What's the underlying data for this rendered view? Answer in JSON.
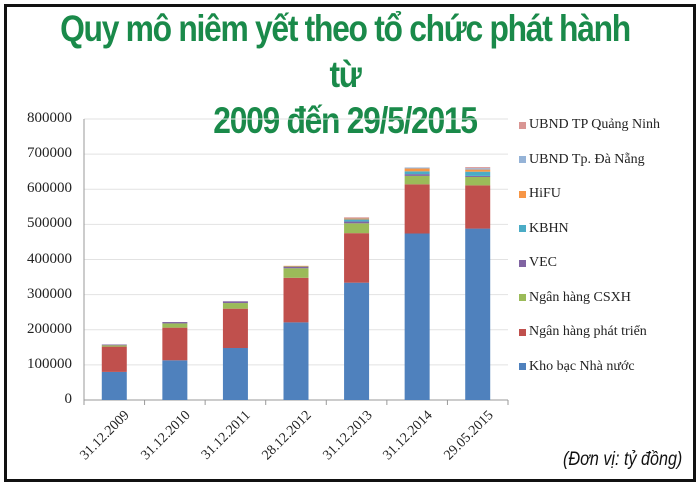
{
  "title_line1": "Quy mô niêm yết theo tổ chức phát hành từ",
  "title_line2": "2009 đến 29/5/2015",
  "unit_note": "(Đơn vị: tỷ đồng)",
  "chart_data": {
    "type": "bar",
    "stacked": true,
    "title": "Quy mô niêm yết theo tổ chức phát hành từ 2009 đến 29/5/2015",
    "xlabel": "",
    "ylabel": "",
    "unit": "tỷ đồng",
    "ylim": [
      0,
      800000
    ],
    "yticks": [
      0,
      100000,
      200000,
      300000,
      400000,
      500000,
      600000,
      700000,
      800000
    ],
    "grid": true,
    "legend_position": "right",
    "categories": [
      "31.12.2009",
      "31.12.2010",
      "31.12.2011",
      "28.12.2012",
      "31.12.2013",
      "31.12.2014",
      "29.05.2015"
    ],
    "series": [
      {
        "name": "Kho bạc Nhà nước",
        "color": "#4f81bd",
        "values": [
          80000,
          113000,
          148000,
          221000,
          334000,
          474000,
          488000
        ]
      },
      {
        "name": "Ngân hàng phát triển",
        "color": "#c0504d",
        "values": [
          72000,
          93000,
          112000,
          127000,
          141000,
          140000,
          123000
        ]
      },
      {
        "name": "Ngân hàng CSXH",
        "color": "#9bbb59",
        "values": [
          4000,
          12000,
          16000,
          27000,
          28000,
          24000,
          24000
        ]
      },
      {
        "name": "VEC",
        "color": "#8064a2",
        "values": [
          2000,
          4000,
          5000,
          4000,
          5000,
          5000,
          3000
        ]
      },
      {
        "name": "KBHN",
        "color": "#4bacc6",
        "values": [
          0,
          0,
          0,
          2000,
          6000,
          8000,
          12000
        ]
      },
      {
        "name": "HiFU",
        "color": "#f79646",
        "values": [
          0,
          0,
          0,
          1000,
          3000,
          8000,
          6000
        ]
      },
      {
        "name": "UBND Tp. Đà Nẵng",
        "color": "#95b3d7",
        "values": [
          0,
          0,
          0,
          0,
          2000,
          3000,
          4000
        ]
      },
      {
        "name": "UBND TP Quảng Ninh",
        "color": "#d99694",
        "values": [
          0,
          0,
          0,
          0,
          1000,
          0,
          3000
        ]
      }
    ]
  },
  "yaxis_labels": [
    "800000",
    "700000",
    "600000",
    "500000",
    "400000",
    "300000",
    "200000",
    "100000",
    "0"
  ],
  "legend": [
    {
      "label": "UBND TP Quảng Ninh",
      "color": "#d99694"
    },
    {
      "label": "UBND Tp. Đà Nẵng",
      "color": "#95b3d7"
    },
    {
      "label": "HiFU",
      "color": "#f79646"
    },
    {
      "label": "KBHN",
      "color": "#4bacc6"
    },
    {
      "label": "VEC",
      "color": "#8064a2"
    },
    {
      "label": "Ngân hàng CSXH",
      "color": "#9bbb59"
    },
    {
      "label": "Ngân hàng phát triển",
      "color": "#c0504d"
    },
    {
      "label": "Kho bạc Nhà nước",
      "color": "#4f81bd"
    }
  ]
}
